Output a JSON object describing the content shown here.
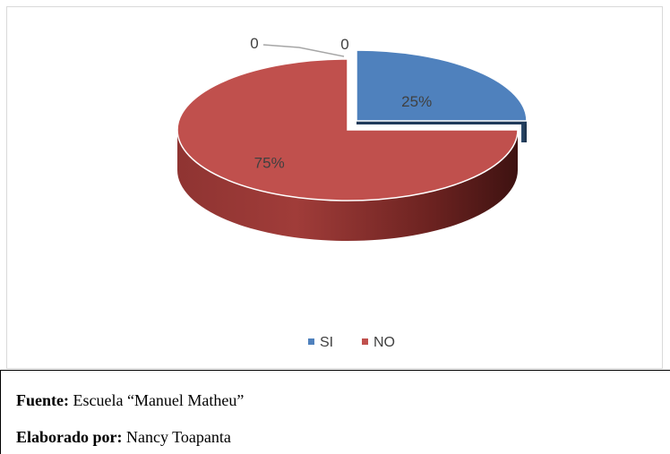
{
  "chart_data": {
    "type": "pie",
    "style": "3d-exploded",
    "categories": [
      "SI",
      "NO"
    ],
    "values": [
      25,
      75
    ],
    "data_labels": [
      "25%",
      "75%"
    ],
    "extra_labels": [
      "0",
      "0"
    ],
    "colors": {
      "SI": "#4f81bd",
      "NO": "#c0504d"
    },
    "legend": {
      "placement": "bottom",
      "items": [
        "SI",
        "NO"
      ]
    }
  },
  "notes": {
    "source_label": "Fuente:",
    "source_value": " Escuela “Manuel Matheu”",
    "author_label": "Elaborado por:",
    "author_value": " Nancy Toapanta"
  }
}
